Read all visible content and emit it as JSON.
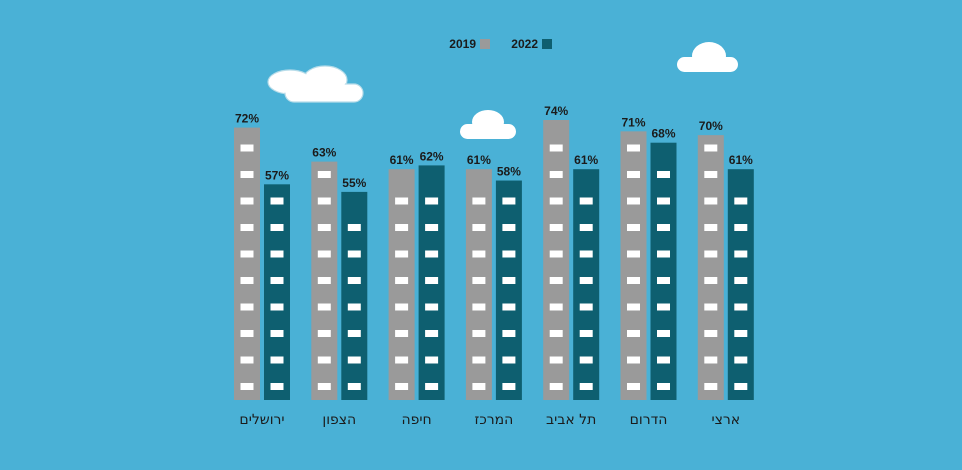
{
  "chart_data": {
    "type": "bar",
    "categories": [
      "ירושלים",
      "הצפון",
      "חיפה",
      "המרכז",
      "תל אביב",
      "הדרום",
      "ארצי"
    ],
    "series": [
      {
        "name": "2019",
        "values": [
          72,
          63,
          61,
          61,
          74,
          71,
          70
        ],
        "labels": [
          "72%",
          "63%",
          "61%",
          "61%",
          "74%",
          "71%",
          "70%"
        ],
        "color": "#9a9a9a"
      },
      {
        "name": "2022",
        "values": [
          57,
          55,
          62,
          58,
          61,
          68,
          61
        ],
        "labels": [
          "57%",
          "55%",
          "62%",
          "58%",
          "61%",
          "68%",
          "61%"
        ],
        "color": "#0e5f70"
      }
    ],
    "ylim": [
      0,
      76
    ],
    "grid": false,
    "legend": "top-center"
  },
  "colors": {
    "background": "#4ab1d6",
    "window": "#ffffff",
    "text": "#1b1b1b"
  }
}
